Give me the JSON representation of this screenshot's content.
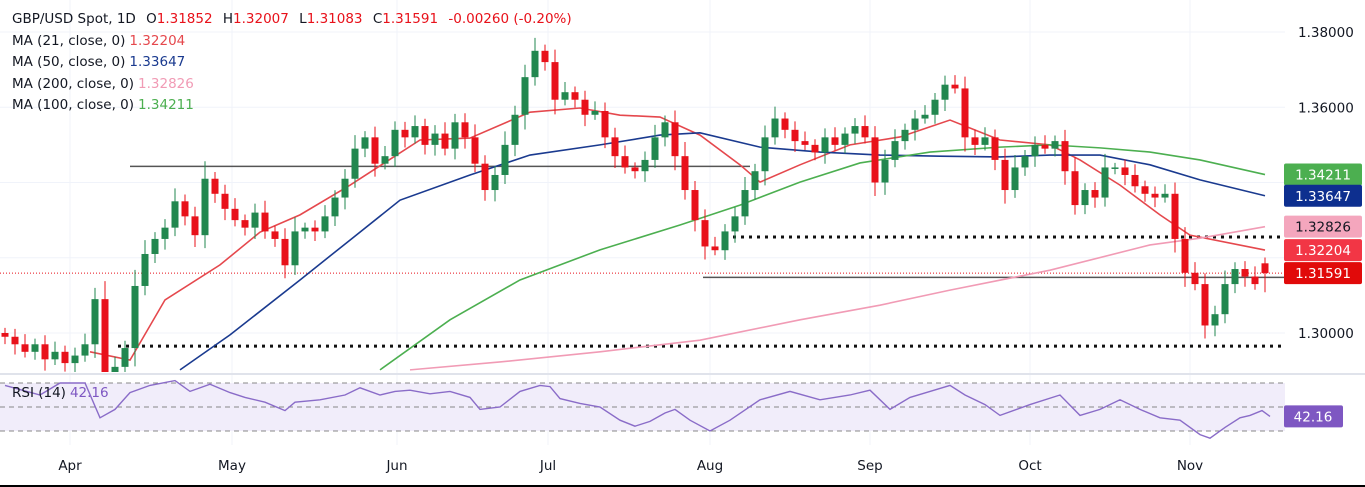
{
  "header": {
    "symbol": "GBP/USD Spot, 1D",
    "open_label": "O",
    "open": "1.31852",
    "high_label": "H",
    "high": "1.32007",
    "low_label": "L",
    "low": "1.31083",
    "close_label": "C",
    "close": "1.31591",
    "change": "-0.00260 (-0.20%)"
  },
  "indicators": [
    {
      "label": "MA (21, close, 0)",
      "value": "1.32204",
      "color": "#e5484d"
    },
    {
      "label": "MA (50, close, 0)",
      "value": "1.33647",
      "color": "#1a3a8f"
    },
    {
      "label": "MA (200, close, 0)",
      "value": "1.32826",
      "color": "#f19bb5"
    },
    {
      "label": "MA (100, close, 0)",
      "value": "1.34211",
      "color": "#4caf50"
    }
  ],
  "rsi": {
    "label": "RSI (14)",
    "value": "42.16",
    "color": "#7e57c2"
  },
  "chart_data": {
    "type": "candlestick",
    "x_ticks": [
      {
        "label": "Apr",
        "bar": 6.5
      },
      {
        "label": "May",
        "bar": 22.7
      },
      {
        "label": "Jun",
        "bar": 39.2
      },
      {
        "label": "Jul",
        "bar": 54.3
      },
      {
        "label": "Aug",
        "bar": 70.5
      },
      {
        "label": "Sep",
        "bar": 86.5
      },
      {
        "label": "Oct",
        "bar": 102.5
      },
      {
        "label": "Nov",
        "bar": 118.5
      }
    ],
    "y_ticks": [
      "1.38000",
      "1.36000",
      "1.30000"
    ],
    "y_tick_values": [
      1.38,
      1.36,
      1.3
    ],
    "ylim": [
      1.2902,
      1.3915
    ],
    "last_candle": {
      "open": 1.31852,
      "high": 1.32007,
      "low": 1.31083,
      "close": 1.31591
    },
    "closes": [
      1.299,
      1.297,
      1.295,
      1.297,
      1.293,
      1.295,
      1.292,
      1.294,
      1.297,
      1.309,
      1.289,
      1.291,
      1.296,
      1.3125,
      1.321,
      1.325,
      1.328,
      1.335,
      1.331,
      1.326,
      1.341,
      1.337,
      1.333,
      1.33,
      1.328,
      1.332,
      1.327,
      1.325,
      1.318,
      1.327,
      1.328,
      1.327,
      1.331,
      1.336,
      1.341,
      1.349,
      1.352,
      1.345,
      1.347,
      1.354,
      1.352,
      1.355,
      1.35,
      1.353,
      1.349,
      1.356,
      1.352,
      1.345,
      1.338,
      1.342,
      1.35,
      1.358,
      1.368,
      1.375,
      1.372,
      1.362,
      1.364,
      1.362,
      1.358,
      1.359,
      1.352,
      1.347,
      1.344,
      1.343,
      1.346,
      1.352,
      1.356,
      1.347,
      1.338,
      1.33,
      1.323,
      1.322,
      1.327,
      1.331,
      1.338,
      1.343,
      1.352,
      1.357,
      1.354,
      1.351,
      1.35,
      1.348,
      1.352,
      1.35,
      1.353,
      1.355,
      1.352,
      1.34,
      1.346,
      1.351,
      1.354,
      1.357,
      1.358,
      1.362,
      1.366,
      1.365,
      1.352,
      1.35,
      1.352,
      1.346,
      1.338,
      1.344,
      1.347,
      1.35,
      1.349,
      1.351,
      1.343,
      1.334,
      1.338,
      1.336,
      1.344,
      1.344,
      1.342,
      1.339,
      1.337,
      1.336,
      1.337,
      1.325,
      1.316,
      1.313,
      1.302,
      1.305,
      1.313,
      1.317,
      1.315,
      1.313,
      1.31591
    ],
    "moving_averages": [
      {
        "name": "MA (21, close, 0)",
        "color": "#e5484d",
        "points": [
          [
            8.5,
            1.295
          ],
          [
            12.5,
            1.2928
          ],
          [
            16,
            1.3088
          ],
          [
            21.5,
            1.3181
          ],
          [
            25.5,
            1.3268
          ],
          [
            29.5,
            1.3314
          ],
          [
            34.5,
            1.3393
          ],
          [
            41.5,
            1.3513
          ],
          [
            46.5,
            1.3518
          ],
          [
            52.5,
            1.3587
          ],
          [
            57.5,
            1.3598
          ],
          [
            61.5,
            1.3579
          ],
          [
            65.5,
            1.3574
          ],
          [
            69.5,
            1.3526
          ],
          [
            73.5,
            1.3447
          ],
          [
            75.5,
            1.3401
          ],
          [
            79.5,
            1.3447
          ],
          [
            84.5,
            1.35
          ],
          [
            89.5,
            1.3521
          ],
          [
            94.5,
            1.3566
          ],
          [
            99.5,
            1.3513
          ],
          [
            104.5,
            1.35
          ],
          [
            107.5,
            1.346
          ],
          [
            111.5,
            1.3393
          ],
          [
            115.5,
            1.3314
          ],
          [
            118.5,
            1.326
          ],
          [
            126,
            1.32204
          ]
        ]
      },
      {
        "name": "MA (50, close, 0)",
        "color": "#1a3a8f",
        "points": [
          [
            17.5,
            1.2902
          ],
          [
            22.5,
            1.2995
          ],
          [
            29.5,
            1.3141
          ],
          [
            34.5,
            1.3247
          ],
          [
            39.5,
            1.3353
          ],
          [
            46.5,
            1.342
          ],
          [
            52.5,
            1.3473
          ],
          [
            59.5,
            1.35
          ],
          [
            65.5,
            1.3526
          ],
          [
            69.5,
            1.3532
          ],
          [
            75.5,
            1.3494
          ],
          [
            81.5,
            1.3481
          ],
          [
            87.5,
            1.3473
          ],
          [
            93.5,
            1.347
          ],
          [
            99.5,
            1.3468
          ],
          [
            104.5,
            1.3473
          ],
          [
            109.5,
            1.3473
          ],
          [
            114.5,
            1.3447
          ],
          [
            119.5,
            1.3407
          ],
          [
            126,
            1.33647
          ]
        ]
      },
      {
        "name": "MA (100, close, 0)",
        "color": "#4caf50",
        "points": [
          [
            37.5,
            1.2902
          ],
          [
            44.5,
            1.3035
          ],
          [
            51.5,
            1.3141
          ],
          [
            59.5,
            1.3221
          ],
          [
            67.5,
            1.3287
          ],
          [
            73.5,
            1.334
          ],
          [
            79.5,
            1.3401
          ],
          [
            85.5,
            1.3452
          ],
          [
            92.5,
            1.3481
          ],
          [
            99.5,
            1.3494
          ],
          [
            104.5,
            1.35
          ],
          [
            109.5,
            1.3492
          ],
          [
            114.5,
            1.3481
          ],
          [
            119.5,
            1.346
          ],
          [
            126,
            1.34211
          ]
        ]
      },
      {
        "name": "MA (200, close, 0)",
        "color": "#f19bb5",
        "points": [
          [
            40.5,
            1.2902
          ],
          [
            49.5,
            1.2923
          ],
          [
            59.5,
            1.295
          ],
          [
            69.5,
            1.2981
          ],
          [
            79.5,
            1.3035
          ],
          [
            87.5,
            1.3074
          ],
          [
            94.5,
            1.3114
          ],
          [
            104.5,
            1.3167
          ],
          [
            114.5,
            1.3234
          ],
          [
            119.5,
            1.3252
          ],
          [
            126,
            1.32826
          ]
        ]
      }
    ],
    "levels": [
      {
        "style": "solid",
        "price": 1.3443,
        "from": 12.5,
        "to": 74.5
      },
      {
        "style": "solid",
        "price": 1.3148,
        "from": 69.8,
        "to": 128
      },
      {
        "style": "dotted",
        "price": 1.3255,
        "from": 72,
        "to": 128
      },
      {
        "style": "dotted",
        "price": 1.2965,
        "from": 11.3,
        "to": 128
      }
    ],
    "price_badges": [
      {
        "value": "1.34211",
        "price": 1.34211,
        "bg": "#4caf50",
        "fg": "#ffffff"
      },
      {
        "value": "1.33647",
        "price": 1.33647,
        "bg": "#0d2f8f",
        "fg": "#ffffff"
      },
      {
        "value": "1.32826",
        "price": 1.32826,
        "bg": "#f4a6bd",
        "fg": "#131722"
      },
      {
        "value": "1.32204",
        "price": 1.32204,
        "bg": "#f23645",
        "fg": "#ffffff"
      },
      {
        "value": "1.31591",
        "price": 1.31591,
        "bg": "#e10a0a",
        "fg": "#ffffff"
      }
    ],
    "rsi_levels": [
      70,
      50,
      30
    ],
    "rsi_points": [
      [
        0,
        68
      ],
      [
        3.5,
        60
      ],
      [
        5.5,
        70
      ],
      [
        8,
        70
      ],
      [
        9.5,
        41
      ],
      [
        11,
        48
      ],
      [
        12.5,
        62
      ],
      [
        14.5,
        68
      ],
      [
        17,
        72
      ],
      [
        18.5,
        63
      ],
      [
        20.5,
        69
      ],
      [
        22.5,
        62
      ],
      [
        24,
        58
      ],
      [
        26,
        54
      ],
      [
        28,
        47
      ],
      [
        29,
        54
      ],
      [
        31.5,
        56
      ],
      [
        34,
        60
      ],
      [
        35.5,
        66
      ],
      [
        37.5,
        60
      ],
      [
        39,
        63
      ],
      [
        40.5,
        64
      ],
      [
        42.5,
        61
      ],
      [
        44.5,
        63
      ],
      [
        46.5,
        58
      ],
      [
        47.5,
        48
      ],
      [
        49.5,
        50
      ],
      [
        51.5,
        63
      ],
      [
        53.5,
        68
      ],
      [
        54.5,
        67
      ],
      [
        55.5,
        57
      ],
      [
        57.5,
        53
      ],
      [
        59.5,
        50
      ],
      [
        61.5,
        39
      ],
      [
        63,
        34
      ],
      [
        64.5,
        38
      ],
      [
        66,
        45
      ],
      [
        67,
        48
      ],
      [
        68.5,
        39
      ],
      [
        70.5,
        30
      ],
      [
        72.5,
        39
      ],
      [
        75.5,
        56
      ],
      [
        78.5,
        63
      ],
      [
        81.5,
        56
      ],
      [
        84.5,
        60
      ],
      [
        86.5,
        64
      ],
      [
        88.5,
        48
      ],
      [
        90.5,
        58
      ],
      [
        92.5,
        63
      ],
      [
        94.5,
        68
      ],
      [
        96,
        60
      ],
      [
        98,
        52
      ],
      [
        99.5,
        43
      ],
      [
        102.5,
        52
      ],
      [
        105.5,
        60
      ],
      [
        107.5,
        43
      ],
      [
        109.5,
        48
      ],
      [
        111.5,
        56
      ],
      [
        113.5,
        48
      ],
      [
        115.5,
        41
      ],
      [
        117.5,
        39
      ],
      [
        119.5,
        27
      ],
      [
        120.5,
        24
      ],
      [
        122,
        33
      ],
      [
        123.5,
        41
      ],
      [
        124.5,
        43
      ],
      [
        125.7,
        47
      ],
      [
        126.5,
        42.16
      ]
    ],
    "colors": {
      "up": "#22874f",
      "down": "#e8111a",
      "rsi_band": "#f1edfa",
      "rsi_line": "#8a6cc8"
    }
  }
}
